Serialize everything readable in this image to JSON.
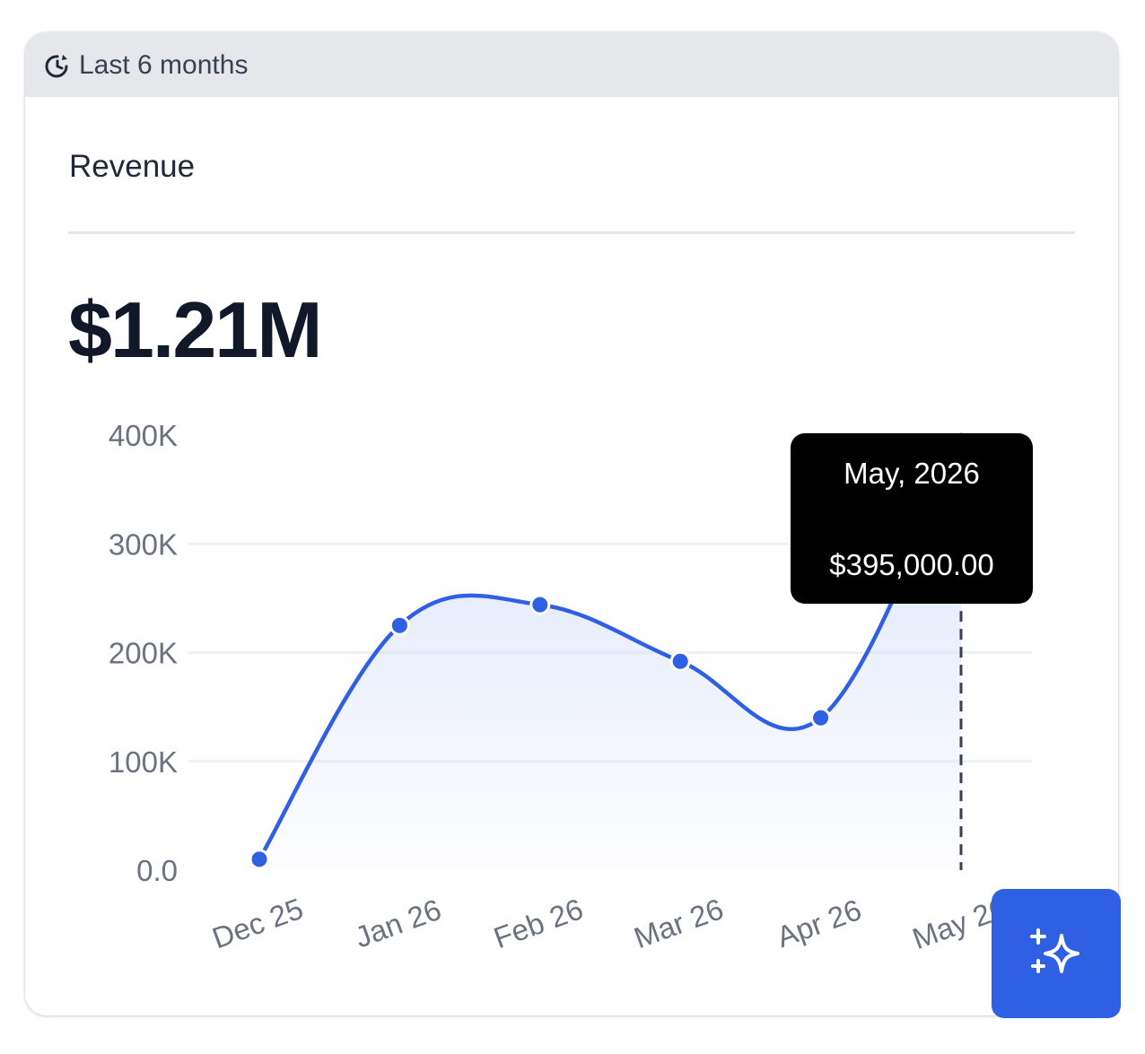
{
  "header": {
    "period_label": "Last 6 months",
    "icon": "clock-history-icon"
  },
  "metric": {
    "title": "Revenue",
    "value": "$1.21M"
  },
  "tooltip": {
    "date": "May, 2026",
    "value": "$395,000.00"
  },
  "ai_button": {
    "icon": "sparkles-icon"
  },
  "colors": {
    "line": "#2f5fe3",
    "fill": "#dbe4fb",
    "grid": "#eef0f3",
    "tick": "#6b7280",
    "header_bg": "#e5e7eb"
  },
  "chart_data": {
    "type": "area",
    "categories": [
      "Dec 25",
      "Jan 26",
      "Feb 26",
      "Mar 26",
      "Apr 26",
      "May 26"
    ],
    "series": [
      {
        "values": [
          10000,
          225000,
          244000,
          192000,
          140000,
          395000
        ]
      }
    ],
    "yticks": [
      "0.0",
      "100K",
      "200K",
      "300K",
      "400K"
    ],
    "ylim": [
      0,
      400000
    ],
    "grid": true,
    "highlight_index": 5
  }
}
